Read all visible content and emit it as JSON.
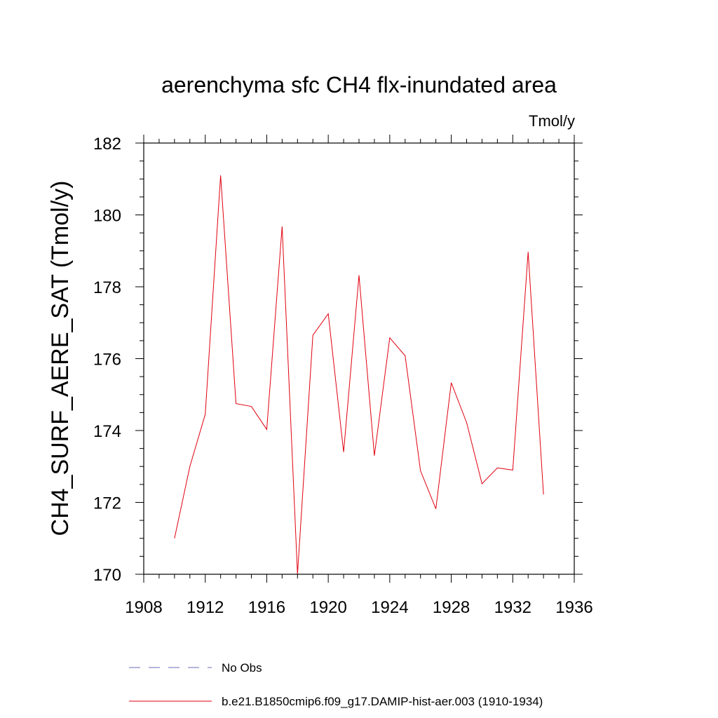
{
  "chart_data": {
    "type": "line",
    "title": "aerenchyma sfc CH4 flx-inundated area",
    "units_label": "Tmol/y",
    "ylabel": "CH4_SURF_AERE_SAT  (Tmol/y)",
    "xlabel": "",
    "xlim": [
      1908,
      1936
    ],
    "ylim": [
      170,
      182
    ],
    "x_ticks": [
      1908,
      1912,
      1916,
      1920,
      1924,
      1928,
      1932,
      1936
    ],
    "y_ticks": [
      170,
      172,
      174,
      176,
      178,
      180,
      182
    ],
    "x_minor_step": 1,
    "y_minor_step": 0.5,
    "grid": false,
    "legend_position": "bottom",
    "series": [
      {
        "name": "No Obs",
        "color": "#6b6bb5",
        "style": "dashed",
        "x": [],
        "y": []
      },
      {
        "name": "b.e21.B1850cmip6.f09_g17.DAMIP-hist-aer.003 (1910-1934)",
        "color": "#e0000f",
        "style": "solid",
        "x": [
          1910,
          1911,
          1912,
          1913,
          1914,
          1915,
          1916,
          1917,
          1918,
          1919,
          1920,
          1921,
          1922,
          1923,
          1924,
          1925,
          1926,
          1927,
          1928,
          1929,
          1930,
          1931,
          1932,
          1933,
          1934
        ],
        "y": [
          171.0,
          173.0,
          174.45,
          181.1,
          174.75,
          174.67,
          174.03,
          179.68,
          170.0,
          176.65,
          177.25,
          173.4,
          178.32,
          173.3,
          176.58,
          176.08,
          172.88,
          171.82,
          175.33,
          174.22,
          172.52,
          172.96,
          172.9,
          178.97,
          172.22
        ]
      }
    ]
  }
}
